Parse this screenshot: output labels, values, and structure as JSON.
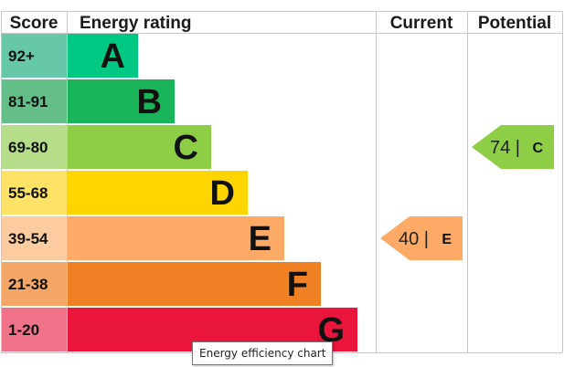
{
  "chart_data": {
    "type": "bar",
    "headers": {
      "score": "Score",
      "rating": "Energy rating",
      "current": "Current",
      "potential": "Potential"
    },
    "bands": [
      {
        "letter": "A",
        "range": "92+",
        "color": "#00c781",
        "score_bg": "#66c8a8"
      },
      {
        "letter": "B",
        "range": "81-91",
        "color": "#19b459",
        "score_bg": "#63bf87"
      },
      {
        "letter": "C",
        "range": "69-80",
        "color": "#8dce46",
        "score_bg": "#b5dd8a"
      },
      {
        "letter": "D",
        "range": "55-68",
        "color": "#ffd500",
        "score_bg": "#ffe366"
      },
      {
        "letter": "E",
        "range": "39-54",
        "color": "#fcaa65",
        "score_bg": "#fdcba0"
      },
      {
        "letter": "F",
        "range": "21-38",
        "color": "#ef8023",
        "score_bg": "#f4a767"
      },
      {
        "letter": "G",
        "range": "1-20",
        "color": "#e9153b",
        "score_bg": "#f07389"
      }
    ],
    "current": {
      "value": 40,
      "letter": "E",
      "color": "#fcaa65"
    },
    "potential": {
      "value": 74,
      "letter": "C",
      "color": "#8dce46"
    }
  },
  "tooltip": "Energy efficiency chart"
}
